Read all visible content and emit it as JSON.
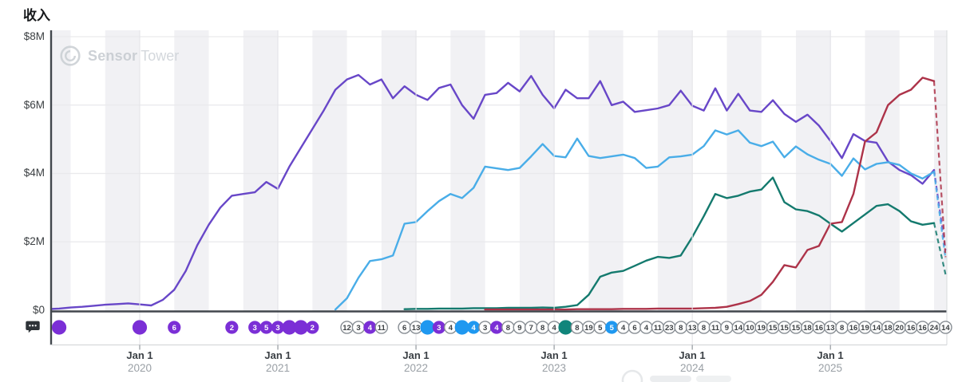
{
  "page": {
    "title": "收入"
  },
  "watermark": {
    "brand_bold": "Sensor",
    "brand_light": "Tower"
  },
  "y_axis": {
    "ticks": [
      "$8M",
      "$6M",
      "$4M",
      "$2M",
      "$0"
    ]
  },
  "x_axis": {
    "ticks": [
      {
        "line1": "Jan 1",
        "line2": "2020"
      },
      {
        "line1": "Jan 1",
        "line2": "2021"
      },
      {
        "line1": "Jan 1",
        "line2": "2022"
      },
      {
        "line1": "Jan 1",
        "line2": "2023"
      },
      {
        "line1": "Jan 1",
        "line2": "2024"
      },
      {
        "line1": "Jan 1",
        "line2": "2025"
      }
    ]
  },
  "chart_data": {
    "type": "line",
    "title": "收入",
    "unit": "$M",
    "ylim": [
      0,
      8
    ],
    "y_tick_values_m": [
      0,
      2,
      4,
      6,
      8
    ],
    "x_start_month": "2019-05",
    "x_end_month": "2025-11",
    "x_year_ticks": [
      2020,
      2021,
      2022,
      2023,
      2024,
      2025
    ],
    "grid": {
      "h_gridlines": true,
      "year_gridlines": true,
      "quarter_stripes": true
    },
    "colors": {
      "purple": "#6847c8",
      "cyan": "#49ade8",
      "teal": "#147a6e",
      "crimson": "#ad3349",
      "stripe": "#f1f1f4",
      "gridline": "#e9e9ec",
      "year_line": "#e4e4e8",
      "axis": "#42474d",
      "strip_border": "#d6d8db",
      "tick": "#9ba0a5"
    },
    "series": [
      {
        "name": "purple",
        "color": "#6847c8",
        "start_month": "2019-05",
        "dashed_tail_value": 1.75,
        "values": [
          0.03,
          0.05,
          0.08,
          0.1,
          0.13,
          0.16,
          0.18,
          0.2,
          0.17,
          0.14,
          0.3,
          0.6,
          1.15,
          1.9,
          2.5,
          3.0,
          3.35,
          3.4,
          3.45,
          3.75,
          3.55,
          4.2,
          4.75,
          5.3,
          5.85,
          6.45,
          6.75,
          6.88,
          6.6,
          6.75,
          6.2,
          6.55,
          6.3,
          6.15,
          6.5,
          6.6,
          6.0,
          5.6,
          6.3,
          6.35,
          6.65,
          6.4,
          6.85,
          6.3,
          5.9,
          6.45,
          6.2,
          6.2,
          6.7,
          6.0,
          6.1,
          5.8,
          5.85,
          5.9,
          6.0,
          6.42,
          5.98,
          5.84,
          6.49,
          5.84,
          6.33,
          5.84,
          5.8,
          6.14,
          5.74,
          5.51,
          5.72,
          5.4,
          4.95,
          4.45,
          5.15,
          4.95,
          4.9,
          4.35,
          4.1,
          3.95,
          3.7,
          4.1
        ]
      },
      {
        "name": "cyan",
        "color": "#49ade8",
        "start_month": "2021-06",
        "dashed_tail_value": 1.5,
        "values": [
          0.02,
          0.35,
          0.95,
          1.44,
          1.49,
          1.6,
          2.53,
          2.58,
          2.9,
          3.19,
          3.4,
          3.28,
          3.58,
          4.2,
          4.15,
          4.1,
          4.16,
          4.5,
          4.86,
          4.51,
          4.47,
          5.02,
          4.51,
          4.45,
          4.5,
          4.55,
          4.45,
          4.16,
          4.2,
          4.47,
          4.5,
          4.55,
          4.8,
          5.26,
          5.14,
          5.26,
          4.9,
          4.8,
          4.93,
          4.47,
          4.79,
          4.56,
          4.4,
          4.28,
          3.93,
          4.44,
          4.12,
          4.28,
          4.33,
          4.25,
          4.0,
          3.85,
          4.05
        ]
      },
      {
        "name": "teal",
        "color": "#147a6e",
        "start_month": "2021-12",
        "dashed_tail_value": 1.05,
        "values": [
          0.03,
          0.04,
          0.04,
          0.05,
          0.05,
          0.05,
          0.06,
          0.06,
          0.06,
          0.07,
          0.07,
          0.07,
          0.08,
          0.07,
          0.1,
          0.15,
          0.45,
          0.98,
          1.1,
          1.15,
          1.3,
          1.45,
          1.56,
          1.53,
          1.6,
          2.14,
          2.75,
          3.4,
          3.28,
          3.35,
          3.47,
          3.53,
          3.88,
          3.16,
          2.95,
          2.9,
          2.77,
          2.53,
          2.3,
          2.55,
          2.8,
          3.05,
          3.1,
          2.9,
          2.6,
          2.5,
          2.55
        ]
      },
      {
        "name": "crimson",
        "color": "#ad3349",
        "start_month": "2022-07",
        "dashed_tail_value": 1.55,
        "values": [
          0.02,
          0.02,
          0.02,
          0.02,
          0.02,
          0.02,
          0.02,
          0.02,
          0.03,
          0.03,
          0.03,
          0.03,
          0.04,
          0.04,
          0.04,
          0.05,
          0.05,
          0.05,
          0.05,
          0.06,
          0.07,
          0.1,
          0.18,
          0.27,
          0.45,
          0.83,
          1.32,
          1.25,
          1.76,
          1.88,
          2.53,
          2.58,
          3.4,
          4.93,
          5.2,
          6.0,
          6.3,
          6.45,
          6.8,
          6.7
        ]
      }
    ],
    "marker_colors": {
      "purple": "#7b2fd6",
      "blue": "#1f98f0",
      "teal": "#11857b",
      "white": "#ffffff"
    },
    "events": [
      {
        "d": "2019-06",
        "n": "",
        "t": "purple"
      },
      {
        "d": "2020-01",
        "n": "",
        "t": "purple"
      },
      {
        "d": "2020-04",
        "n": "6",
        "t": "purple"
      },
      {
        "d": "2020-09",
        "n": "2",
        "t": "purple"
      },
      {
        "d": "2020-11",
        "n": "3",
        "t": "purple"
      },
      {
        "d": "2020-12",
        "n": "5",
        "t": "purple"
      },
      {
        "d": "2021-01",
        "n": "3",
        "t": "purple"
      },
      {
        "d": "2021-02",
        "n": "",
        "t": "purple"
      },
      {
        "d": "2021-03",
        "n": "",
        "t": "purple"
      },
      {
        "d": "2021-04",
        "n": "2",
        "t": "purple"
      },
      {
        "d": "2021-07",
        "n": "12",
        "t": "white"
      },
      {
        "d": "2021-08",
        "n": "3",
        "t": "white"
      },
      {
        "d": "2021-09",
        "n": "4",
        "t": "purple"
      },
      {
        "d": "2021-10",
        "n": "11",
        "t": "white"
      },
      {
        "d": "2021-12",
        "n": "6",
        "t": "white"
      },
      {
        "d": "2022-01",
        "n": "13",
        "t": "white"
      },
      {
        "d": "2022-02",
        "n": "",
        "t": "blue"
      },
      {
        "d": "2022-03",
        "n": "3",
        "t": "purple"
      },
      {
        "d": "2022-04",
        "n": "4",
        "t": "white"
      },
      {
        "d": "2022-05",
        "n": "",
        "t": "blue"
      },
      {
        "d": "2022-06",
        "n": "4",
        "t": "blue"
      },
      {
        "d": "2022-07",
        "n": "3",
        "t": "white"
      },
      {
        "d": "2022-08",
        "n": "4",
        "t": "purple"
      },
      {
        "d": "2022-09",
        "n": "8",
        "t": "white"
      },
      {
        "d": "2022-10",
        "n": "9",
        "t": "white"
      },
      {
        "d": "2022-11",
        "n": "7",
        "t": "white"
      },
      {
        "d": "2022-12",
        "n": "8",
        "t": "white"
      },
      {
        "d": "2023-01",
        "n": "4",
        "t": "white"
      },
      {
        "d": "2023-02",
        "n": "",
        "t": "teal"
      },
      {
        "d": "2023-03",
        "n": "8",
        "t": "white"
      },
      {
        "d": "2023-04",
        "n": "19",
        "t": "white"
      },
      {
        "d": "2023-05",
        "n": "5",
        "t": "white"
      },
      {
        "d": "2023-06",
        "n": "5",
        "t": "blue"
      },
      {
        "d": "2023-07",
        "n": "4",
        "t": "white"
      },
      {
        "d": "2023-08",
        "n": "6",
        "t": "white"
      },
      {
        "d": "2023-09",
        "n": "4",
        "t": "white"
      },
      {
        "d": "2023-10",
        "n": "11",
        "t": "white"
      },
      {
        "d": "2023-11",
        "n": "23",
        "t": "white"
      },
      {
        "d": "2023-12",
        "n": "8",
        "t": "white"
      },
      {
        "d": "2024-01",
        "n": "13",
        "t": "white"
      },
      {
        "d": "2024-02",
        "n": "8",
        "t": "white"
      },
      {
        "d": "2024-03",
        "n": "11",
        "t": "white"
      },
      {
        "d": "2024-04",
        "n": "9",
        "t": "white"
      },
      {
        "d": "2024-05",
        "n": "14",
        "t": "white"
      },
      {
        "d": "2024-06",
        "n": "10",
        "t": "white"
      },
      {
        "d": "2024-07",
        "n": "19",
        "t": "white"
      },
      {
        "d": "2024-08",
        "n": "15",
        "t": "white"
      },
      {
        "d": "2024-09",
        "n": "15",
        "t": "white"
      },
      {
        "d": "2024-10",
        "n": "15",
        "t": "white"
      },
      {
        "d": "2024-11",
        "n": "18",
        "t": "white"
      },
      {
        "d": "2024-12",
        "n": "16",
        "t": "white"
      },
      {
        "d": "2025-01",
        "n": "13",
        "t": "white"
      },
      {
        "d": "2025-02",
        "n": "8",
        "t": "white"
      },
      {
        "d": "2025-03",
        "n": "16",
        "t": "white"
      },
      {
        "d": "2025-04",
        "n": "19",
        "t": "white"
      },
      {
        "d": "2025-05",
        "n": "14",
        "t": "white"
      },
      {
        "d": "2025-06",
        "n": "18",
        "t": "white"
      },
      {
        "d": "2025-07",
        "n": "20",
        "t": "white"
      },
      {
        "d": "2025-08",
        "n": "16",
        "t": "white"
      },
      {
        "d": "2025-09",
        "n": "16",
        "t": "white"
      },
      {
        "d": "2025-10",
        "n": "24",
        "t": "white"
      },
      {
        "d": "2025-11",
        "n": "14",
        "t": "white"
      }
    ]
  }
}
